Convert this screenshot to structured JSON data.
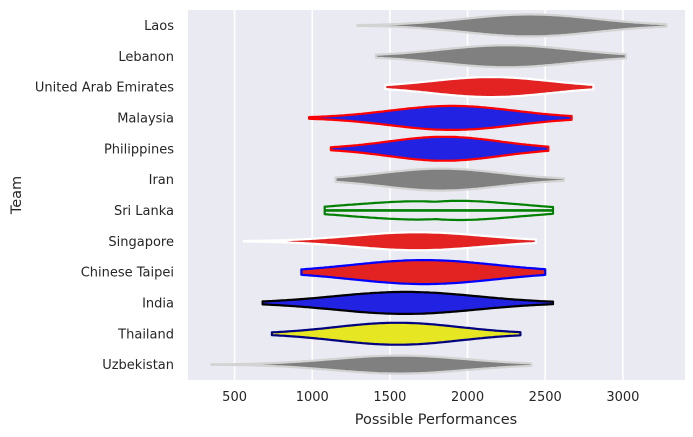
{
  "chart_data": {
    "type": "violin",
    "xlabel": "Possible Performances",
    "ylabel": "Team",
    "xlim": [
      200,
      3400
    ],
    "xticks": [
      500,
      1000,
      1500,
      2000,
      2500,
      3000
    ],
    "grid": true,
    "legend": "none",
    "colors": {
      "background": "#eaeaf2",
      "grid": "#ffffff",
      "text": "#262626"
    },
    "teams": [
      {
        "name": "Laos",
        "fill": "#808080",
        "edge": "#d3d3d3",
        "whisker": [
          1290,
          3280
        ],
        "center": 2400,
        "width": 420,
        "halfHeight": 11
      },
      {
        "name": "Lebanon",
        "fill": "#808080",
        "edge": "#d3d3d3",
        "whisker": [
          1410,
          3020
        ],
        "center": 2250,
        "width": 420,
        "halfHeight": 11
      },
      {
        "name": "United Arab Emirates",
        "fill": "#e32222",
        "edge": "#ffffff",
        "whisker": [
          1470,
          2810
        ],
        "center": 2150,
        "width": 380,
        "halfHeight": 10
      },
      {
        "name": "Malaysia",
        "fill": "#2222e3",
        "edge": "#ff0000",
        "whisker": [
          980,
          2670
        ],
        "center": 1900,
        "width": 400,
        "halfHeight": 12
      },
      {
        "name": "Philippines",
        "fill": "#2222e3",
        "edge": "#ff0000",
        "whisker": [
          1120,
          2520
        ],
        "center": 1850,
        "width": 360,
        "halfHeight": 12
      },
      {
        "name": "Iran",
        "fill": "#808080",
        "edge": "#d3d3d3",
        "whisker": [
          1150,
          2620
        ],
        "center": 1830,
        "width": 380,
        "halfHeight": 11
      },
      {
        "name": "Sri Lanka",
        "fill": "none",
        "edge": "#008000",
        "whisker": [
          1080,
          2550
        ],
        "center": 1820,
        "width": 480,
        "halfHeight": 11,
        "bimodal": true
      },
      {
        "name": "Singapore",
        "fill": "#e32222",
        "edge": "#ffffff",
        "whisker": [
          560,
          2440
        ],
        "center": 1680,
        "width": 420,
        "halfHeight": 9
      },
      {
        "name": "Chinese Taipei",
        "fill": "#e32222",
        "edge": "#0000ff",
        "whisker": [
          930,
          2500
        ],
        "center": 1720,
        "width": 460,
        "halfHeight": 12
      },
      {
        "name": "India",
        "fill": "#2222e3",
        "edge": "#000000",
        "whisker": [
          680,
          2550
        ],
        "center": 1600,
        "width": 460,
        "halfHeight": 11
      },
      {
        "name": "Thailand",
        "fill": "#e6e622",
        "edge": "#000080",
        "whisker": [
          740,
          2340
        ],
        "center": 1550,
        "width": 400,
        "halfHeight": 11
      },
      {
        "name": "Uzbekistan",
        "fill": "#808080",
        "edge": "#d3d3d3",
        "whisker": [
          350,
          2410
        ],
        "center": 1560,
        "width": 430,
        "halfHeight": 9
      }
    ]
  }
}
